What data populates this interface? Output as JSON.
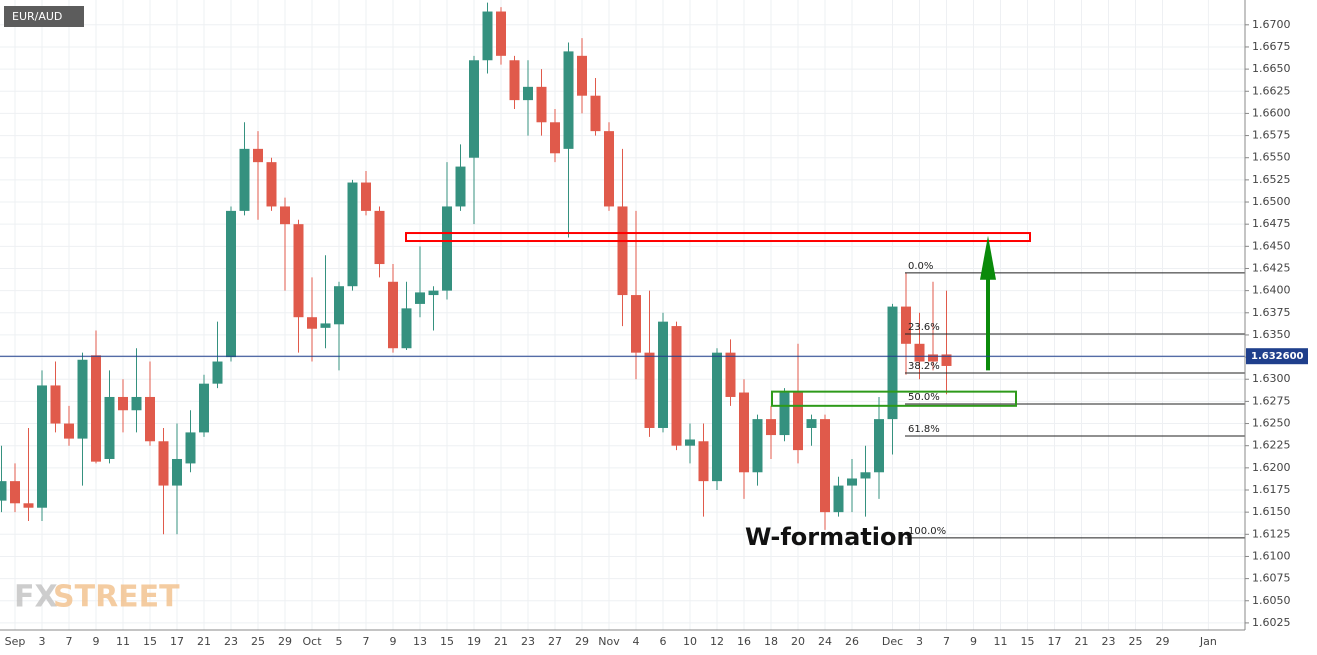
{
  "chart_data": {
    "type": "candlestick",
    "symbol": "EUR/AUD",
    "annotation": "W-formation",
    "logo": {
      "left": "FX",
      "right": "STREET"
    },
    "up_color": "#35917f",
    "down_color": "#e05a4b",
    "grid": true,
    "ylim": [
      1.6017,
      1.6728
    ],
    "yticks": [
      1.6025,
      {
        "value": 1.605,
        "label": "1.6050"
      },
      1.6075,
      {
        "value": 1.61,
        "label": "1.6100"
      },
      1.6125,
      {
        "value": 1.615,
        "label": "1.6150"
      },
      1.6175,
      {
        "value": 1.62,
        "label": "1.6200"
      },
      1.6225,
      {
        "value": 1.625,
        "label": "1.6250"
      },
      1.6275,
      {
        "value": 1.63,
        "label": "1.6300"
      },
      1.6325,
      {
        "value": 1.635,
        "label": "1.6350"
      },
      1.6375,
      {
        "value": 1.64,
        "label": "1.6400"
      },
      1.6425,
      {
        "value": 1.645,
        "label": "1.6450"
      },
      1.6475,
      {
        "value": 1.65,
        "label": "1.6500"
      },
      1.6525,
      {
        "value": 1.655,
        "label": "1.6550"
      },
      1.6575,
      {
        "value": 1.66,
        "label": "1.6600"
      },
      1.6625,
      {
        "value": 1.665,
        "label": "1.6650"
      },
      1.6675,
      {
        "value": 1.67,
        "label": "1.6700"
      }
    ],
    "x_labels": [
      "Sep",
      "3",
      "7",
      "9",
      "11",
      "15",
      "17",
      "21",
      "23",
      "25",
      "29",
      "Oct",
      "5",
      "7",
      "9",
      "13",
      "15",
      "19",
      "21",
      "23",
      "27",
      "29",
      "Nov",
      "4",
      "6",
      "10",
      "12",
      "16",
      "18",
      "20",
      "24",
      "26",
      "Dec",
      "3",
      "7",
      "9",
      "11",
      "15",
      "17",
      "21",
      "23",
      "25",
      "29",
      "Jan"
    ],
    "open": [
      1.6163,
      1.6185,
      1.616,
      1.6155,
      1.6293,
      1.625,
      1.6233,
      1.6327,
      1.621,
      1.628,
      1.6265,
      1.628,
      1.623,
      1.618,
      1.6205,
      1.624,
      1.6295,
      1.6325,
      1.649,
      1.656,
      1.6545,
      1.6495,
      1.6475,
      1.637,
      1.6358,
      1.6362,
      1.6405,
      1.6522,
      1.649,
      1.641,
      1.6335,
      1.6385,
      1.6395,
      1.64,
      1.6495,
      1.655,
      1.666,
      1.6715,
      1.666,
      1.6615,
      1.663,
      1.659,
      1.656,
      1.6665,
      1.662,
      1.658,
      1.6495,
      1.6395,
      1.633,
      1.6245,
      1.636,
      1.6225,
      1.623,
      1.6185,
      1.633,
      1.6285,
      1.6195,
      1.6255,
      1.6237,
      1.6285,
      1.6245,
      1.6255,
      1.615,
      1.618,
      1.6188,
      1.6195,
      1.6255,
      1.6382,
      1.634,
      1.6328,
      1.6328
    ],
    "high": [
      1.6225,
      1.6205,
      1.6245,
      1.631,
      1.632,
      1.627,
      1.633,
      1.6355,
      1.631,
      1.63,
      1.6335,
      1.632,
      1.6245,
      1.625,
      1.6265,
      1.6305,
      1.6365,
      1.6495,
      1.659,
      1.658,
      1.655,
      1.6505,
      1.648,
      1.6415,
      1.644,
      1.641,
      1.6525,
      1.6535,
      1.6495,
      1.643,
      1.641,
      1.645,
      1.6405,
      1.6545,
      1.6565,
      1.6665,
      1.6725,
      1.672,
      1.6665,
      1.666,
      1.665,
      1.6605,
      1.668,
      1.6685,
      1.664,
      1.659,
      1.656,
      1.649,
      1.64,
      1.6375,
      1.6365,
      1.625,
      1.625,
      1.6335,
      1.6345,
      1.63,
      1.626,
      1.627,
      1.629,
      1.634,
      1.626,
      1.626,
      1.619,
      1.621,
      1.6225,
      1.628,
      1.6385,
      1.642,
      1.6375,
      1.641,
      1.64
    ],
    "low": [
      1.615,
      1.615,
      1.614,
      1.614,
      1.624,
      1.6225,
      1.618,
      1.6205,
      1.6205,
      1.624,
      1.624,
      1.6225,
      1.6125,
      1.6125,
      1.6195,
      1.6235,
      1.629,
      1.632,
      1.6485,
      1.648,
      1.649,
      1.64,
      1.633,
      1.632,
      1.6335,
      1.631,
      1.64,
      1.6485,
      1.6415,
      1.633,
      1.6333,
      1.637,
      1.6355,
      1.639,
      1.649,
      1.6475,
      1.6645,
      1.6655,
      1.6605,
      1.6575,
      1.6575,
      1.6545,
      1.646,
      1.66,
      1.6575,
      1.649,
      1.636,
      1.63,
      1.6235,
      1.624,
      1.622,
      1.6205,
      1.6145,
      1.6175,
      1.627,
      1.6165,
      1.618,
      1.621,
      1.623,
      1.6205,
      1.6225,
      1.613,
      1.6145,
      1.615,
      1.6145,
      1.6165,
      1.6215,
      1.6305,
      1.63,
      1.631,
      1.6283
    ],
    "close": [
      1.6185,
      1.616,
      1.6155,
      1.6293,
      1.625,
      1.6233,
      1.6322,
      1.6207,
      1.628,
      1.6265,
      1.628,
      1.623,
      1.618,
      1.621,
      1.624,
      1.6295,
      1.632,
      1.649,
      1.656,
      1.6545,
      1.6495,
      1.6475,
      1.637,
      1.6357,
      1.6363,
      1.6405,
      1.6522,
      1.649,
      1.643,
      1.6335,
      1.638,
      1.6398,
      1.64,
      1.6495,
      1.654,
      1.666,
      1.6715,
      1.6665,
      1.6615,
      1.663,
      1.659,
      1.6555,
      1.667,
      1.662,
      1.658,
      1.6495,
      1.6395,
      1.633,
      1.6245,
      1.6365,
      1.6225,
      1.6232,
      1.6185,
      1.633,
      1.628,
      1.6195,
      1.6255,
      1.6237,
      1.6285,
      1.622,
      1.6255,
      1.615,
      1.618,
      1.6188,
      1.6195,
      1.6255,
      1.6382,
      1.634,
      1.632,
      1.632,
      1.6315
    ],
    "last_price": {
      "value": 1.6326,
      "label": "1.632600"
    },
    "fib": {
      "labels": [
        "0.0%",
        "23.6%",
        "38.2%",
        "50.0%",
        "61.8%",
        "100.0%"
      ],
      "prices": [
        1.642,
        1.6351,
        1.6307,
        1.6272,
        1.6236,
        1.6121
      ]
    },
    "zones": [
      {
        "low": 1.6456,
        "high": 1.6465,
        "color": "#ff0000"
      },
      {
        "low": 1.627,
        "high": 1.6286,
        "color": "#2e9a1a"
      }
    ],
    "arrow": {
      "from": 1.631,
      "to": 1.6462,
      "color": "#0a8a0a"
    }
  }
}
